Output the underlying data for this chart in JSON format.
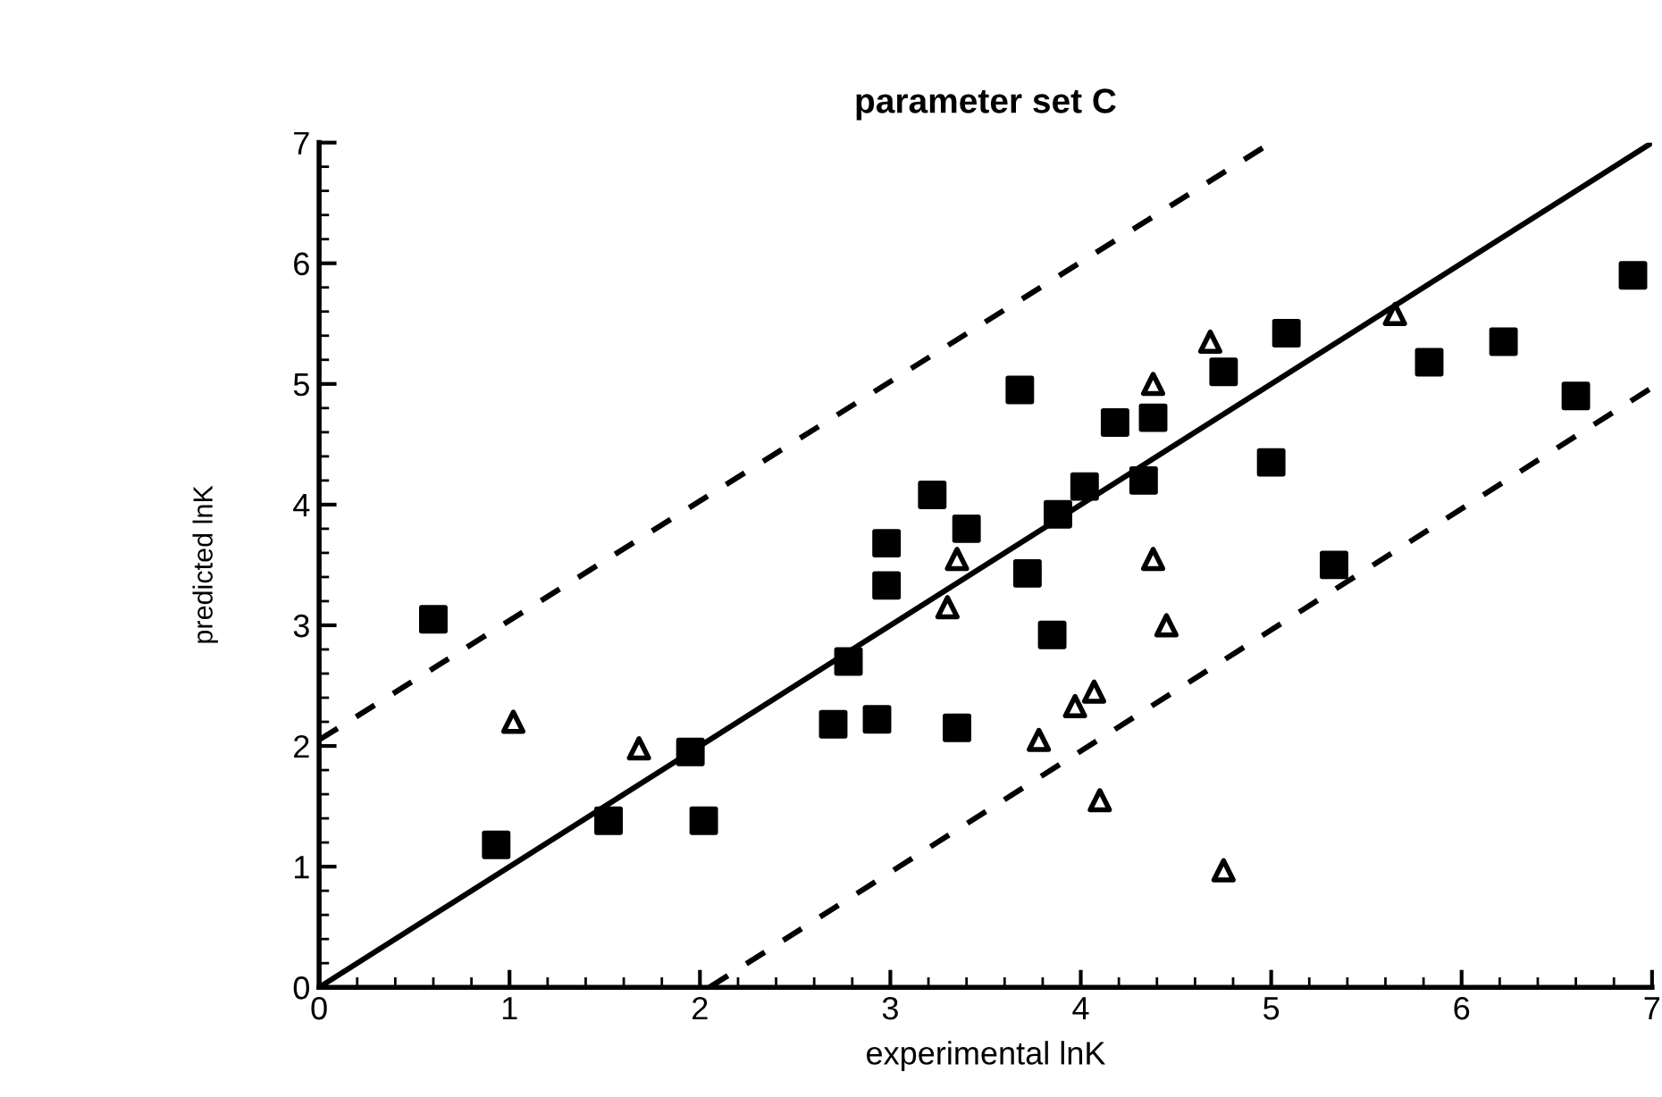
{
  "chart_data": {
    "type": "scatter",
    "title": "parameter set C",
    "xlabel": "experimental lnK",
    "ylabel": "predicted lnK",
    "xlim": [
      0,
      7
    ],
    "ylim": [
      0,
      7
    ],
    "xticks": [
      0,
      1,
      2,
      3,
      4,
      5,
      6,
      7
    ],
    "yticks": [
      0,
      1,
      2,
      3,
      4,
      5,
      6,
      7
    ],
    "grid": false,
    "legend": false,
    "series": [
      {
        "marker": "square",
        "color": "#000000",
        "x": [
          0.6,
          0.93,
          1.52,
          1.95,
          2.02,
          2.7,
          2.78,
          2.93,
          2.98,
          2.98,
          3.22,
          3.35,
          3.4,
          3.68,
          3.72,
          3.85,
          3.88,
          4.02,
          4.18,
          4.33,
          4.38,
          4.75,
          5.0,
          5.08,
          5.33,
          5.83,
          6.22,
          6.6,
          6.9
        ],
        "values": [
          3.05,
          1.18,
          1.38,
          1.95,
          1.38,
          2.18,
          2.7,
          2.22,
          3.68,
          3.33,
          4.08,
          2.15,
          3.8,
          4.95,
          3.43,
          2.92,
          3.92,
          4.15,
          4.68,
          4.2,
          4.72,
          5.1,
          4.35,
          5.42,
          3.5,
          5.18,
          5.35,
          4.9,
          5.9
        ]
      },
      {
        "marker": "triangle",
        "color": "#000000",
        "x": [
          1.02,
          1.68,
          3.3,
          3.35,
          3.78,
          3.97,
          4.07,
          4.1,
          4.38,
          4.38,
          4.45,
          4.68,
          4.75,
          5.65
        ],
        "values": [
          2.2,
          1.98,
          3.15,
          3.55,
          2.05,
          2.33,
          2.45,
          1.55,
          3.55,
          5.0,
          3.0,
          5.35,
          0.97,
          5.58
        ]
      },
      {
        "type": "line",
        "line_style": "solid",
        "color": "#000000",
        "x": [
          0,
          7
        ],
        "values": [
          0,
          7
        ]
      },
      {
        "type": "line",
        "line_style": "dashed",
        "color": "#000000",
        "x": [
          0,
          5
        ],
        "values": [
          2.05,
          7
        ]
      },
      {
        "type": "line",
        "line_style": "dashed",
        "color": "#000000",
        "x": [
          2.05,
          7
        ],
        "values": [
          0,
          4.97
        ]
      }
    ]
  }
}
